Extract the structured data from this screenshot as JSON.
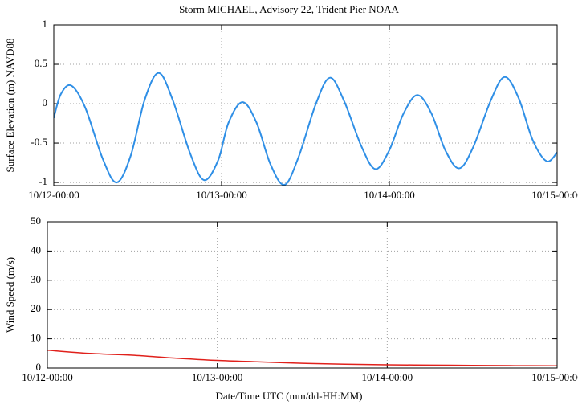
{
  "chart_data": [
    {
      "type": "line",
      "title": "Storm MICHAEL, Advisory 22,  Trident Pier NOAA",
      "ylabel": "Surface Elevation (m) NAVD88",
      "color": "#2f8fe6",
      "grid": true,
      "x": [
        "10/12-00:00",
        "10/12-01:00",
        "10/12-02:30",
        "10/12-04:30",
        "10/12-07:00",
        "10/12-09:00",
        "10/12-11:00",
        "10/12-13:00",
        "10/12-15:00",
        "10/12-17:00",
        "10/12-19:30",
        "10/12-21:30",
        "10/12-23:30",
        "10/13-01:00",
        "10/13-03:00",
        "10/13-05:00",
        "10/13-07:00",
        "10/13-09:00",
        "10/13-11:00",
        "10/13-13:30",
        "10/13-15:30",
        "10/13-17:30",
        "10/13-20:00",
        "10/13-22:00",
        "10/14-00:00",
        "10/14-02:00",
        "10/14-04:00",
        "10/14-06:00",
        "10/14-08:00",
        "10/14-10:00",
        "10/14-12:00",
        "10/14-14:30",
        "10/14-16:30",
        "10/14-18:30",
        "10/14-20:30",
        "10/14-22:30",
        "10/15-00:00"
      ],
      "values": [
        -0.18,
        0.12,
        0.23,
        -0.05,
        -0.7,
        -1.0,
        -0.66,
        0.05,
        0.39,
        0.05,
        -0.63,
        -0.97,
        -0.72,
        -0.24,
        0.02,
        -0.24,
        -0.77,
        -1.03,
        -0.68,
        0.0,
        0.33,
        0.04,
        -0.54,
        -0.83,
        -0.59,
        -0.13,
        0.11,
        -0.12,
        -0.59,
        -0.82,
        -0.55,
        0.04,
        0.34,
        0.07,
        -0.46,
        -0.73,
        -0.62
      ],
      "xlim": [
        "10/12-00:00",
        "10/15-00:00"
      ],
      "xticks": [
        "10/12-00:00",
        "10/13-00:00",
        "10/14-00:00",
        "10/15-00:00"
      ],
      "ylim": [
        -1.04,
        1
      ],
      "yticks": [
        -1,
        -0.5,
        0,
        0.5,
        1
      ]
    },
    {
      "type": "line",
      "xlabel": "Date/Time UTC (mm/dd-HH:MM)",
      "ylabel": "Wind Speed (m/s)",
      "color": "#e0201b",
      "grid": true,
      "x": [
        "10/12-00:00",
        "10/12-06:00",
        "10/12-12:00",
        "10/12-18:00",
        "10/13-00:00",
        "10/13-06:00",
        "10/13-12:00",
        "10/13-18:00",
        "10/14-00:00",
        "10/14-06:00",
        "10/14-12:00",
        "10/14-18:00",
        "10/15-00:00"
      ],
      "values": [
        6.1,
        5.0,
        4.4,
        3.4,
        2.6,
        2.1,
        1.6,
        1.3,
        1.1,
        1.0,
        0.9,
        0.8,
        0.75
      ],
      "xlim": [
        "10/12-00:00",
        "10/15-00:00"
      ],
      "xticks": [
        "10/12-00:00",
        "10/13-00:00",
        "10/14-00:00",
        "10/15-00:00"
      ],
      "ylim": [
        0,
        50
      ],
      "yticks": [
        0,
        10,
        20,
        30,
        40,
        50
      ]
    }
  ]
}
